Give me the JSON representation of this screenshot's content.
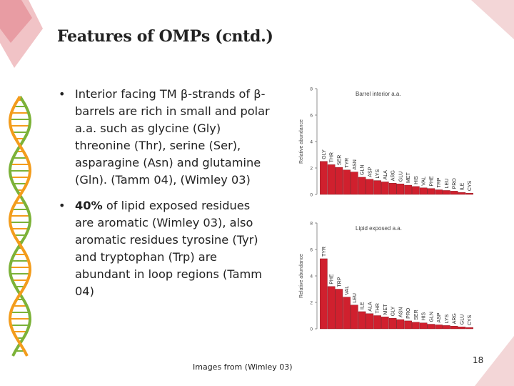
{
  "slide": {
    "title": "Features of OMPs  (cntd.)",
    "bullets": [
      {
        "highlight": "",
        "text": "Interior facing TM β-strands of β-barrels are rich in small and polar a.a. such as glycine (Gly) threonine (Thr), serine (Ser), asparagine (Asn) and glutamine (Gln). (Tamm 04), (Wimley 03)"
      },
      {
        "highlight": "40%",
        "text": " of lipid exposed residues are aromatic (Wimley 03), also aromatic residues tyrosine (Tyr) and tryptophan (Trp) are abundant in loop regions (Tamm 04)"
      }
    ],
    "caption": "Images from (Wimley 03)",
    "page_number": "18",
    "bullet_symbol": "•"
  },
  "colors": {
    "bar": "#d0202e",
    "bar_edge": "#7a0d14",
    "diamond": "#e9a2a8",
    "dna_green": "#7cb238",
    "dna_orange": "#f39c1c"
  },
  "chart_data": [
    {
      "type": "bar",
      "title": "Barrel interior a.a.",
      "ylabel": "Relative abundance",
      "ylim": [
        0,
        8
      ],
      "yticks": [
        "0",
        "2",
        "4",
        "6",
        "8"
      ],
      "categories": [
        "GLY",
        "THR",
        "SER",
        "TYR",
        "ASN",
        "GLN",
        "ASP",
        "LYS",
        "ALA",
        "ARG",
        "GLU",
        "MET",
        "HIS",
        "VAL",
        "PHE",
        "TRP",
        "LEU",
        "PRO",
        "ILE",
        "CYS"
      ],
      "values": [
        2.5,
        2.25,
        2.05,
        1.85,
        1.7,
        1.3,
        1.15,
        1.05,
        0.95,
        0.85,
        0.8,
        0.7,
        0.6,
        0.5,
        0.45,
        0.35,
        0.3,
        0.25,
        0.15,
        0.1
      ]
    },
    {
      "type": "bar",
      "title": "Lipid exposed a.a.",
      "ylabel": "Relative abundance",
      "ylim": [
        0,
        8
      ],
      "yticks": [
        "0",
        "2",
        "4",
        "6",
        "8"
      ],
      "categories": [
        "TYR",
        "PHE",
        "TRP",
        "VAL",
        "LEU",
        "ILE",
        "ALA",
        "THR",
        "MET",
        "GLY",
        "ASN",
        "PRO",
        "SER",
        "HIS",
        "GLN",
        "ASP",
        "LYS",
        "ARG",
        "GLU",
        "CYS"
      ],
      "values": [
        5.3,
        3.2,
        3.0,
        2.4,
        1.8,
        1.3,
        1.15,
        1.0,
        0.9,
        0.8,
        0.7,
        0.6,
        0.5,
        0.45,
        0.35,
        0.3,
        0.25,
        0.2,
        0.15,
        0.1
      ]
    }
  ]
}
